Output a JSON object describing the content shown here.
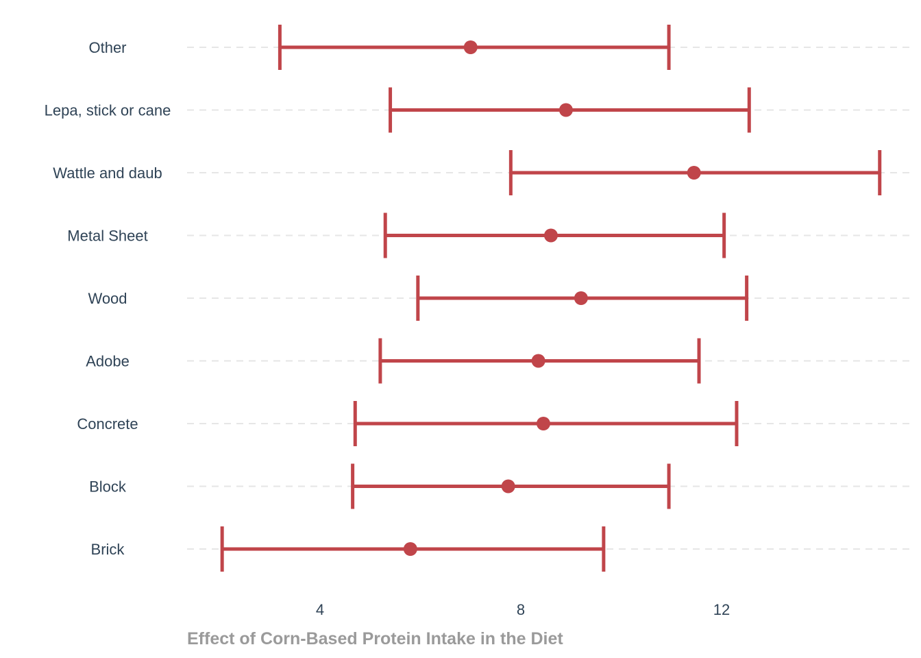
{
  "chart_data": {
    "type": "errorbar",
    "xlabel": "Effect of Corn-Based Protein Intake in the Diet",
    "ylabel": "",
    "xlim": [
      1.4,
      15.9
    ],
    "xticks": [
      4,
      8,
      12
    ],
    "grid": "horizontal dashed",
    "legend": "none",
    "color": "#c0454a",
    "categories": [
      "Other",
      "Lepa, stick or cane",
      "Wattle and daub",
      "Metal Sheet",
      "Wood",
      "Adobe",
      "Concrete",
      "Block",
      "Brick"
    ],
    "estimates": [
      7.0,
      8.9,
      11.45,
      8.6,
      9.2,
      8.35,
      8.45,
      7.75,
      5.8
    ],
    "lower": [
      3.2,
      5.4,
      7.8,
      5.3,
      5.95,
      5.2,
      4.7,
      4.65,
      2.05
    ],
    "upper": [
      10.95,
      12.55,
      15.15,
      12.05,
      12.5,
      11.55,
      12.3,
      10.95,
      9.65
    ]
  }
}
